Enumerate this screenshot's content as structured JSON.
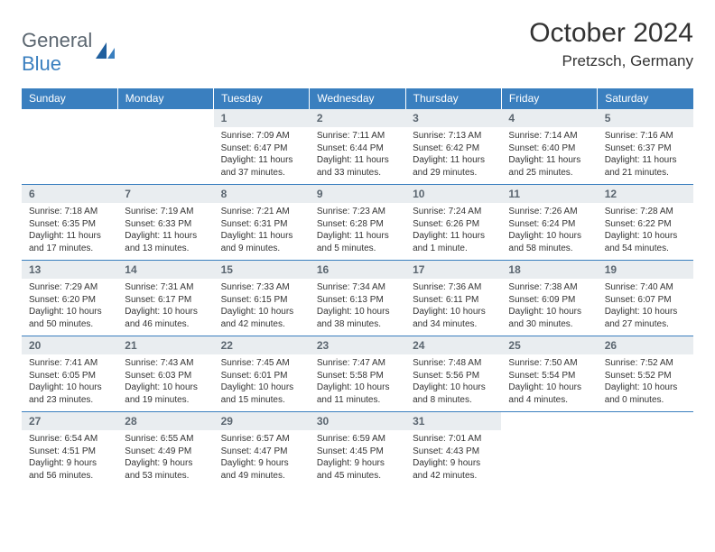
{
  "brand": {
    "name1": "General",
    "name2": "Blue"
  },
  "title": "October 2024",
  "location": "Pretzsch, Germany",
  "accent_color": "#3a7fbf",
  "header_bg": "#3a7fbf",
  "header_text_color": "#ffffff",
  "daynum_bg": "#e9edf0",
  "daynum_color": "#5b6670",
  "body_text_color": "#333333",
  "font_family": "Arial",
  "weekdays": [
    "Sunday",
    "Monday",
    "Tuesday",
    "Wednesday",
    "Thursday",
    "Friday",
    "Saturday"
  ],
  "weeks": [
    [
      null,
      null,
      {
        "d": "1",
        "sr": "Sunrise: 7:09 AM",
        "ss": "Sunset: 6:47 PM",
        "dl": "Daylight: 11 hours and 37 minutes."
      },
      {
        "d": "2",
        "sr": "Sunrise: 7:11 AM",
        "ss": "Sunset: 6:44 PM",
        "dl": "Daylight: 11 hours and 33 minutes."
      },
      {
        "d": "3",
        "sr": "Sunrise: 7:13 AM",
        "ss": "Sunset: 6:42 PM",
        "dl": "Daylight: 11 hours and 29 minutes."
      },
      {
        "d": "4",
        "sr": "Sunrise: 7:14 AM",
        "ss": "Sunset: 6:40 PM",
        "dl": "Daylight: 11 hours and 25 minutes."
      },
      {
        "d": "5",
        "sr": "Sunrise: 7:16 AM",
        "ss": "Sunset: 6:37 PM",
        "dl": "Daylight: 11 hours and 21 minutes."
      }
    ],
    [
      {
        "d": "6",
        "sr": "Sunrise: 7:18 AM",
        "ss": "Sunset: 6:35 PM",
        "dl": "Daylight: 11 hours and 17 minutes."
      },
      {
        "d": "7",
        "sr": "Sunrise: 7:19 AM",
        "ss": "Sunset: 6:33 PM",
        "dl": "Daylight: 11 hours and 13 minutes."
      },
      {
        "d": "8",
        "sr": "Sunrise: 7:21 AM",
        "ss": "Sunset: 6:31 PM",
        "dl": "Daylight: 11 hours and 9 minutes."
      },
      {
        "d": "9",
        "sr": "Sunrise: 7:23 AM",
        "ss": "Sunset: 6:28 PM",
        "dl": "Daylight: 11 hours and 5 minutes."
      },
      {
        "d": "10",
        "sr": "Sunrise: 7:24 AM",
        "ss": "Sunset: 6:26 PM",
        "dl": "Daylight: 11 hours and 1 minute."
      },
      {
        "d": "11",
        "sr": "Sunrise: 7:26 AM",
        "ss": "Sunset: 6:24 PM",
        "dl": "Daylight: 10 hours and 58 minutes."
      },
      {
        "d": "12",
        "sr": "Sunrise: 7:28 AM",
        "ss": "Sunset: 6:22 PM",
        "dl": "Daylight: 10 hours and 54 minutes."
      }
    ],
    [
      {
        "d": "13",
        "sr": "Sunrise: 7:29 AM",
        "ss": "Sunset: 6:20 PM",
        "dl": "Daylight: 10 hours and 50 minutes."
      },
      {
        "d": "14",
        "sr": "Sunrise: 7:31 AM",
        "ss": "Sunset: 6:17 PM",
        "dl": "Daylight: 10 hours and 46 minutes."
      },
      {
        "d": "15",
        "sr": "Sunrise: 7:33 AM",
        "ss": "Sunset: 6:15 PM",
        "dl": "Daylight: 10 hours and 42 minutes."
      },
      {
        "d": "16",
        "sr": "Sunrise: 7:34 AM",
        "ss": "Sunset: 6:13 PM",
        "dl": "Daylight: 10 hours and 38 minutes."
      },
      {
        "d": "17",
        "sr": "Sunrise: 7:36 AM",
        "ss": "Sunset: 6:11 PM",
        "dl": "Daylight: 10 hours and 34 minutes."
      },
      {
        "d": "18",
        "sr": "Sunrise: 7:38 AM",
        "ss": "Sunset: 6:09 PM",
        "dl": "Daylight: 10 hours and 30 minutes."
      },
      {
        "d": "19",
        "sr": "Sunrise: 7:40 AM",
        "ss": "Sunset: 6:07 PM",
        "dl": "Daylight: 10 hours and 27 minutes."
      }
    ],
    [
      {
        "d": "20",
        "sr": "Sunrise: 7:41 AM",
        "ss": "Sunset: 6:05 PM",
        "dl": "Daylight: 10 hours and 23 minutes."
      },
      {
        "d": "21",
        "sr": "Sunrise: 7:43 AM",
        "ss": "Sunset: 6:03 PM",
        "dl": "Daylight: 10 hours and 19 minutes."
      },
      {
        "d": "22",
        "sr": "Sunrise: 7:45 AM",
        "ss": "Sunset: 6:01 PM",
        "dl": "Daylight: 10 hours and 15 minutes."
      },
      {
        "d": "23",
        "sr": "Sunrise: 7:47 AM",
        "ss": "Sunset: 5:58 PM",
        "dl": "Daylight: 10 hours and 11 minutes."
      },
      {
        "d": "24",
        "sr": "Sunrise: 7:48 AM",
        "ss": "Sunset: 5:56 PM",
        "dl": "Daylight: 10 hours and 8 minutes."
      },
      {
        "d": "25",
        "sr": "Sunrise: 7:50 AM",
        "ss": "Sunset: 5:54 PM",
        "dl": "Daylight: 10 hours and 4 minutes."
      },
      {
        "d": "26",
        "sr": "Sunrise: 7:52 AM",
        "ss": "Sunset: 5:52 PM",
        "dl": "Daylight: 10 hours and 0 minutes."
      }
    ],
    [
      {
        "d": "27",
        "sr": "Sunrise: 6:54 AM",
        "ss": "Sunset: 4:51 PM",
        "dl": "Daylight: 9 hours and 56 minutes."
      },
      {
        "d": "28",
        "sr": "Sunrise: 6:55 AM",
        "ss": "Sunset: 4:49 PM",
        "dl": "Daylight: 9 hours and 53 minutes."
      },
      {
        "d": "29",
        "sr": "Sunrise: 6:57 AM",
        "ss": "Sunset: 4:47 PM",
        "dl": "Daylight: 9 hours and 49 minutes."
      },
      {
        "d": "30",
        "sr": "Sunrise: 6:59 AM",
        "ss": "Sunset: 4:45 PM",
        "dl": "Daylight: 9 hours and 45 minutes."
      },
      {
        "d": "31",
        "sr": "Sunrise: 7:01 AM",
        "ss": "Sunset: 4:43 PM",
        "dl": "Daylight: 9 hours and 42 minutes."
      },
      null,
      null
    ]
  ]
}
